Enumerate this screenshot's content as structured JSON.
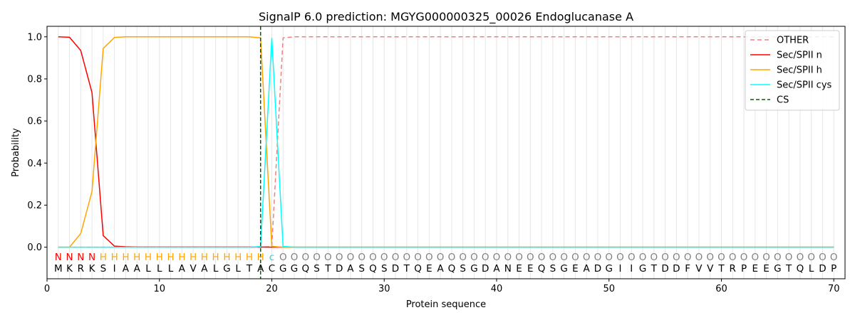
{
  "chart_data": {
    "type": "line",
    "title": "SignalP 6.0 prediction: MGYG000000325_00026 Endoglucanase A",
    "xlabel": "Protein sequence",
    "ylabel": "Probability",
    "xlim": [
      0,
      71
    ],
    "ylim": [
      -0.15,
      1.05
    ],
    "x_ticks": [
      "0",
      "10",
      "20",
      "30",
      "40",
      "50",
      "60",
      "70"
    ],
    "y_ticks": [
      "0.0",
      "0.2",
      "0.4",
      "0.6",
      "0.8",
      "1.0"
    ],
    "grid": "vertical lines at each residue",
    "legend_position": "top-right",
    "sequence": [
      "M",
      "K",
      "R",
      "K",
      "S",
      "I",
      "A",
      "A",
      "L",
      "L",
      "L",
      "A",
      "V",
      "A",
      "L",
      "G",
      "L",
      "T",
      "A",
      "C",
      "G",
      "G",
      "Q",
      "S",
      "T",
      "D",
      "A",
      "S",
      "Q",
      "S",
      "D",
      "T",
      "Q",
      "E",
      "A",
      "Q",
      "S",
      "G",
      "D",
      "A",
      "N",
      "E",
      "E",
      "Q",
      "S",
      "G",
      "E",
      "A",
      "D",
      "G",
      "I",
      "I",
      "G",
      "T",
      "D",
      "D",
      "F",
      "V",
      "V",
      "T",
      "R",
      "P",
      "E",
      "E",
      "G",
      "T",
      "Q",
      "L",
      "D",
      "P"
    ],
    "labels": [
      "N",
      "N",
      "N",
      "N",
      "H",
      "H",
      "H",
      "H",
      "H",
      "H",
      "H",
      "H",
      "H",
      "H",
      "H",
      "H",
      "H",
      "H",
      "H",
      "c",
      "O",
      "O",
      "O",
      "O",
      "O",
      "O",
      "O",
      "O",
      "O",
      "O",
      "O",
      "O",
      "O",
      "O",
      "O",
      "O",
      "O",
      "O",
      "O",
      "O",
      "O",
      "O",
      "O",
      "O",
      "O",
      "O",
      "O",
      "O",
      "O",
      "O",
      "O",
      "O",
      "O",
      "O",
      "O",
      "O",
      "O",
      "O",
      "O",
      "O",
      "O",
      "O",
      "O",
      "O",
      "O",
      "O",
      "O",
      "O",
      "O",
      "O"
    ],
    "label_colors": {
      "N": "#ff0000",
      "H": "#ffa500",
      "c": "#00e5e5",
      "O": "#808080"
    },
    "x": [
      1,
      2,
      3,
      4,
      5,
      6,
      7,
      8,
      9,
      10,
      11,
      12,
      13,
      14,
      15,
      16,
      17,
      18,
      19,
      20,
      21,
      22,
      23,
      24,
      25,
      26,
      27,
      28,
      29,
      30,
      31,
      32,
      33,
      34,
      35,
      36,
      37,
      38,
      39,
      40,
      41,
      42,
      43,
      44,
      45,
      46,
      47,
      48,
      49,
      50,
      51,
      52,
      53,
      54,
      55,
      56,
      57,
      58,
      59,
      60,
      61,
      62,
      63,
      64,
      65,
      66,
      67,
      68,
      69,
      70
    ],
    "series": [
      {
        "name": "OTHER",
        "color": "#f08080",
        "dash": "6,4",
        "values": [
          0,
          0,
          0,
          0,
          0,
          0,
          0,
          0,
          0,
          0,
          0,
          0,
          0,
          0,
          0,
          0,
          0,
          0,
          0,
          0.003,
          0.995,
          1,
          1,
          1,
          1,
          1,
          1,
          1,
          1,
          1,
          1,
          1,
          1,
          1,
          1,
          1,
          1,
          1,
          1,
          1,
          1,
          1,
          1,
          1,
          1,
          1,
          1,
          1,
          1,
          1,
          1,
          1,
          1,
          1,
          1,
          1,
          1,
          1,
          1,
          1,
          1,
          1,
          1,
          1,
          1,
          1,
          1,
          1,
          1,
          1
        ]
      },
      {
        "name": "Sec/SPII n",
        "color": "#ff0000",
        "dash": "",
        "values": [
          1.0,
          0.998,
          0.935,
          0.735,
          0.055,
          0.005,
          0.002,
          0.001,
          0.001,
          0.001,
          0.001,
          0.001,
          0.001,
          0.001,
          0.001,
          0.001,
          0.001,
          0.001,
          0.001,
          0,
          0,
          0,
          0,
          0,
          0,
          0,
          0,
          0,
          0,
          0,
          0,
          0,
          0,
          0,
          0,
          0,
          0,
          0,
          0,
          0,
          0,
          0,
          0,
          0,
          0,
          0,
          0,
          0,
          0,
          0,
          0,
          0,
          0,
          0,
          0,
          0,
          0,
          0,
          0,
          0,
          0,
          0,
          0,
          0,
          0,
          0,
          0,
          0,
          0,
          0
        ]
      },
      {
        "name": "Sec/SPII h",
        "color": "#ffa500",
        "dash": "",
        "values": [
          0,
          0,
          0.065,
          0.265,
          0.945,
          0.997,
          1.0,
          1.0,
          1.0,
          1.0,
          1.0,
          1.0,
          1.0,
          1.0,
          1.0,
          1.0,
          1.0,
          1.0,
          0.995,
          0.004,
          0,
          0,
          0,
          0,
          0,
          0,
          0,
          0,
          0,
          0,
          0,
          0,
          0,
          0,
          0,
          0,
          0,
          0,
          0,
          0,
          0,
          0,
          0,
          0,
          0,
          0,
          0,
          0,
          0,
          0,
          0,
          0,
          0,
          0,
          0,
          0,
          0,
          0,
          0,
          0,
          0,
          0,
          0,
          0,
          0,
          0,
          0,
          0,
          0,
          0
        ]
      },
      {
        "name": "Sec/SPII cys",
        "color": "#00ffff",
        "dash": "",
        "values": [
          0,
          0,
          0,
          0,
          0,
          0,
          0,
          0,
          0,
          0,
          0,
          0,
          0,
          0,
          0,
          0,
          0,
          0,
          0.003,
          0.993,
          0.004,
          0,
          0,
          0,
          0,
          0,
          0,
          0,
          0,
          0,
          0,
          0,
          0,
          0,
          0,
          0,
          0,
          0,
          0,
          0,
          0,
          0,
          0,
          0,
          0,
          0,
          0,
          0,
          0,
          0,
          0,
          0,
          0,
          0,
          0,
          0,
          0,
          0,
          0,
          0,
          0,
          0,
          0,
          0,
          0,
          0,
          0,
          0,
          0,
          0
        ]
      }
    ],
    "cs": {
      "name": "CS",
      "color": "#006400",
      "x": 19
    }
  }
}
